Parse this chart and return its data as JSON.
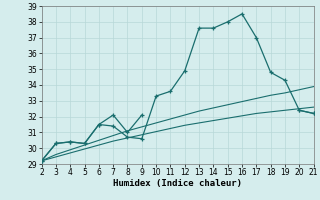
{
  "title": "",
  "xlabel": "Humidex (Indice chaleur)",
  "x": [
    2,
    3,
    4,
    5,
    6,
    7,
    8,
    9,
    10,
    11,
    12,
    13,
    14,
    15,
    16,
    17,
    18,
    19,
    20,
    21
  ],
  "line1": [
    29.2,
    30.3,
    30.4,
    30.3,
    31.5,
    31.4,
    30.7,
    30.6,
    33.3,
    33.6,
    34.9,
    37.6,
    37.6,
    38.0,
    38.5,
    37.0,
    34.8,
    34.3,
    32.4,
    32.2
  ],
  "line2_x": [
    2,
    3,
    4,
    5,
    6,
    7,
    8,
    9,
    20,
    21
  ],
  "line2_y": [
    29.2,
    30.3,
    30.4,
    30.3,
    31.5,
    32.1,
    31.0,
    32.1,
    32.4,
    32.2
  ],
  "trend1": [
    29.2,
    29.6,
    29.9,
    30.2,
    30.5,
    30.8,
    31.1,
    31.35,
    31.6,
    31.85,
    32.1,
    32.35,
    32.55,
    32.75,
    32.95,
    33.15,
    33.35,
    33.5,
    33.7,
    33.9
  ],
  "trend2": [
    29.2,
    29.45,
    29.7,
    29.95,
    30.2,
    30.45,
    30.65,
    30.85,
    31.05,
    31.25,
    31.45,
    31.6,
    31.75,
    31.9,
    32.05,
    32.2,
    32.3,
    32.4,
    32.5,
    32.6
  ],
  "ylim": [
    29,
    39
  ],
  "xlim": [
    2,
    21
  ],
  "bg_color": "#d5eded",
  "grid_color": "#b8d8d8",
  "line_color": "#1a6e6e",
  "yticks": [
    29,
    30,
    31,
    32,
    33,
    34,
    35,
    36,
    37,
    38,
    39
  ],
  "xticks": [
    2,
    3,
    4,
    5,
    6,
    7,
    8,
    9,
    10,
    11,
    12,
    13,
    14,
    15,
    16,
    17,
    18,
    19,
    20,
    21
  ],
  "tick_fontsize": 5.5,
  "xlabel_fontsize": 6.5
}
